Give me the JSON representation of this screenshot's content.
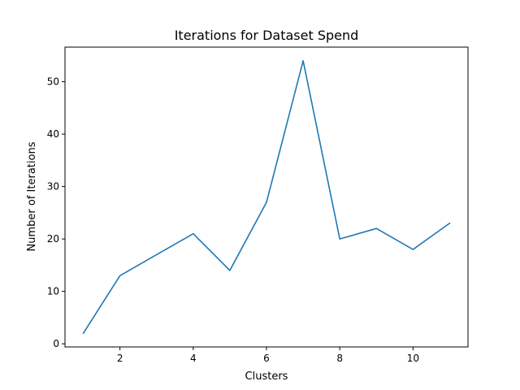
{
  "chart_data": {
    "type": "line",
    "title": "Iterations for Dataset Spend",
    "xlabel": "Clusters",
    "ylabel": "Number of Iterations",
    "x": [
      1,
      2,
      3,
      4,
      5,
      6,
      7,
      8,
      9,
      10,
      11
    ],
    "series": [
      {
        "values": [
          2,
          13,
          17,
          21,
          14,
          27,
          54,
          20,
          22,
          18,
          23
        ]
      }
    ],
    "xlim": [
      0.5,
      11.5
    ],
    "ylim": [
      -0.6,
      56.6
    ],
    "xticks": [
      2,
      4,
      6,
      8,
      10
    ],
    "yticks": [
      0,
      10,
      20,
      30,
      40,
      50
    ],
    "grid": false,
    "legend": "none",
    "line_color": "#1f77b4"
  }
}
